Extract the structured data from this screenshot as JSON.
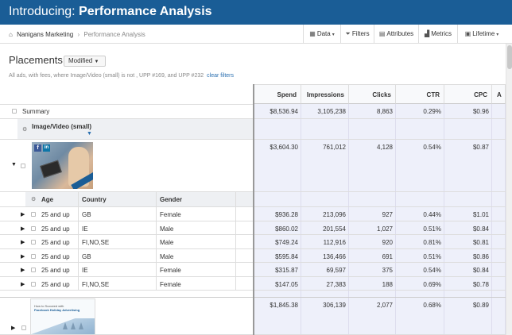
{
  "banner": {
    "prefix": "Introducing: ",
    "title": "Performance Analysis"
  },
  "breadcrumb": {
    "account": "Nanigans Marketing",
    "separator": "›",
    "page": "Performance Analysis"
  },
  "toolbar": {
    "data": "Data",
    "filters": "Filters",
    "attributes": "Attributes",
    "metrics": "Metrics",
    "lifetime": "Lifetime"
  },
  "page": {
    "heading": "Placements",
    "view": "Modified",
    "filter_text": "All ads, with fees, where Image/Video (small) is not , UPP #169, and UPP #232",
    "clear_filters": "clear filters"
  },
  "metric_headers": [
    "Spend",
    "Impressions",
    "Clicks",
    "CTR",
    "CPC",
    "A"
  ],
  "summary": {
    "label": "Summary",
    "values": [
      "$8,536.94",
      "3,105,238",
      "8,863",
      "0.29%",
      "$0.96"
    ]
  },
  "group_header": "Image/Video (small)",
  "group1_values": [
    "$3,604.30",
    "761,012",
    "4,128",
    "0.54%",
    "$0.87"
  ],
  "breakdown_headers": {
    "age": "Age",
    "country": "Country",
    "gender": "Gender"
  },
  "breakdown_rows": [
    {
      "age": "25 and up",
      "country": "GB",
      "gender": "Female",
      "values": [
        "$936.28",
        "213,096",
        "927",
        "0.44%",
        "$1.01"
      ]
    },
    {
      "age": "25 and up",
      "country": "IE",
      "gender": "Male",
      "values": [
        "$860.02",
        "201,554",
        "1,027",
        "0.51%",
        "$0.84"
      ]
    },
    {
      "age": "25 and up",
      "country": "FI,NO,SE",
      "gender": "Male",
      "values": [
        "$749.24",
        "112,916",
        "920",
        "0.81%",
        "$0.81"
      ]
    },
    {
      "age": "25 and up",
      "country": "GB",
      "gender": "Male",
      "values": [
        "$595.84",
        "136,466",
        "691",
        "0.51%",
        "$0.86"
      ]
    },
    {
      "age": "25 and up",
      "country": "IE",
      "gender": "Female",
      "values": [
        "$315.87",
        "69,597",
        "375",
        "0.54%",
        "$0.84"
      ]
    },
    {
      "age": "25 and up",
      "country": "FI,NO,SE",
      "gender": "Female",
      "values": [
        "$147.05",
        "27,383",
        "188",
        "0.69%",
        "$0.78"
      ]
    }
  ],
  "group2_values": [
    "$1,845.38",
    "306,139",
    "2,077",
    "0.68%",
    "$0.89"
  ],
  "thumb2": {
    "line1": "How to Succeed with",
    "line2": "Facebook Holiday Advertising"
  },
  "colors": {
    "banner": "#1a5d96",
    "metric_column_bg": "#eef0fa",
    "link": "#2a6fb0"
  }
}
